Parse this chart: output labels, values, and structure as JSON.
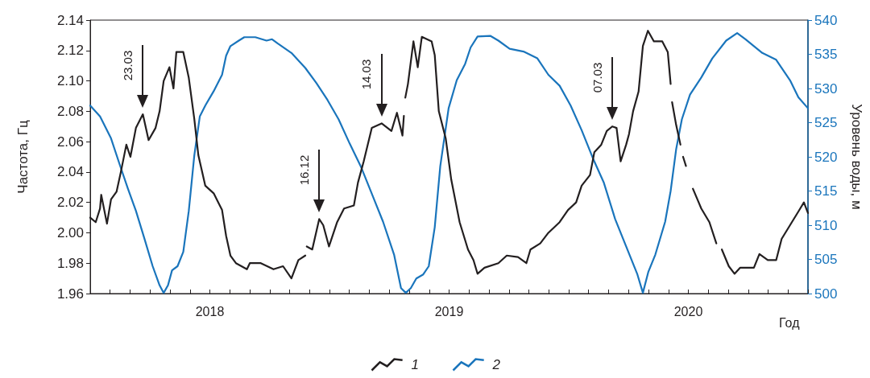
{
  "chart_data": {
    "type": "line",
    "xlabel": "Год",
    "ylabel": "Частота, Гц",
    "y2label": "Уровень воды, м",
    "xlim": [
      2018,
      2021
    ],
    "xticks": [
      {
        "value": 2018,
        "label": null
      },
      {
        "value": 2018.083,
        "label": null
      },
      {
        "value": 2018.167,
        "label": null
      },
      {
        "value": 2018.25,
        "label": null
      },
      {
        "value": 2018.333,
        "label": null
      },
      {
        "value": 2018.417,
        "label": null
      },
      {
        "value": 2018.5,
        "label": "2018"
      },
      {
        "value": 2018.583,
        "label": null
      },
      {
        "value": 2018.667,
        "label": null
      },
      {
        "value": 2018.75,
        "label": null
      },
      {
        "value": 2018.833,
        "label": null
      },
      {
        "value": 2018.917,
        "label": null
      },
      {
        "value": 2019,
        "label": null
      },
      {
        "value": 2019.083,
        "label": null
      },
      {
        "value": 2019.167,
        "label": null
      },
      {
        "value": 2019.25,
        "label": null
      },
      {
        "value": 2019.333,
        "label": null
      },
      {
        "value": 2019.417,
        "label": null
      },
      {
        "value": 2019.5,
        "label": "2019"
      },
      {
        "value": 2019.583,
        "label": null
      },
      {
        "value": 2019.667,
        "label": null
      },
      {
        "value": 2019.75,
        "label": null
      },
      {
        "value": 2019.833,
        "label": null
      },
      {
        "value": 2019.917,
        "label": null
      },
      {
        "value": 2020,
        "label": null
      },
      {
        "value": 2020.083,
        "label": null
      },
      {
        "value": 2020.167,
        "label": null
      },
      {
        "value": 2020.25,
        "label": null
      },
      {
        "value": 2020.333,
        "label": null
      },
      {
        "value": 2020.417,
        "label": null
      },
      {
        "value": 2020.5,
        "label": "2020"
      },
      {
        "value": 2020.583,
        "label": null
      },
      {
        "value": 2020.667,
        "label": null
      },
      {
        "value": 2020.75,
        "label": null
      },
      {
        "value": 2020.833,
        "label": null
      },
      {
        "value": 2020.917,
        "label": null
      },
      {
        "value": 2021,
        "label": null
      }
    ],
    "ylim": [
      1.96,
      2.14
    ],
    "yticks": [
      1.96,
      1.98,
      {
        "value": 2,
        "label": "2.00"
      },
      2.02,
      2.04,
      2.06,
      2.08,
      {
        "value": 2.1,
        "label": "2.10"
      },
      2.12,
      2.14
    ],
    "y2lim": [
      500,
      540
    ],
    "y2ticks": [
      500,
      505,
      510,
      515,
      520,
      525,
      530,
      535,
      540
    ],
    "legend": "bottom",
    "grid": false,
    "marker": "none",
    "line_style": "solid",
    "series": [
      {
        "name": "1",
        "color": "#231f20",
        "x": [
          2018.0,
          2018.023,
          2018.041,
          2018.046,
          2018.07,
          2018.087,
          2018.11,
          2018.128,
          2018.151,
          2018.168,
          2018.191,
          2018.22,
          2018.244,
          2018.273,
          2018.29,
          2018.307,
          2018.331,
          2018.348,
          2018.36,
          2018.389,
          2018.412,
          2018.435,
          2018.452,
          2018.481,
          2018.516,
          2018.551,
          2018.568,
          2018.586,
          2018.609,
          2018.655,
          2018.667,
          2018.713,
          2018.766,
          2018.806,
          2018.841,
          2018.87,
          2018.899,
          2018.902,
          2018.905,
          2018.928,
          2018.957,
          2018.974,
          2018.998,
          2019.032,
          2019.061,
          2019.102,
          2019.119,
          2019.143,
          2019.177,
          2019.218,
          2019.259,
          2019.282,
          2019.305,
          2019.311,
          2019.314,
          2019.317,
          2019.328,
          2019.351,
          2019.369,
          2019.386,
          2019.427,
          2019.44,
          2019.457,
          2019.486,
          2019.509,
          2019.544,
          2019.579,
          2019.602,
          2019.619,
          2019.648,
          2019.706,
          2019.741,
          2019.788,
          2019.823,
          2019.84,
          2019.881,
          2019.915,
          2019.962,
          2019.997,
          2020.031,
          2020.054,
          2020.089,
          2020.107,
          2020.136,
          2020.159,
          2020.182,
          2020.2,
          2020.217,
          2020.24,
          2020.252,
          2020.269,
          2020.292,
          2020.31,
          2020.331,
          2020.356,
          2020.391,
          2020.414,
          2020.426,
          2020.429,
          2020.432,
          2020.449,
          2020.467,
          2020.472,
          2020.478,
          2020.49,
          2020.505,
          2020.519,
          2020.554,
          2020.588,
          2020.617,
          2020.628,
          2020.64,
          2020.669,
          2020.693,
          2020.716,
          2020.774,
          2020.797,
          2020.832,
          2020.867,
          2020.89,
          2020.925,
          2020.96,
          2020.983,
          2021.0
        ],
        "values": [
          2.01,
          2.007,
          2.016,
          2.025,
          2.006,
          2.022,
          2.027,
          2.04,
          2.058,
          2.05,
          2.069,
          2.078,
          2.061,
          2.069,
          2.08,
          2.1,
          2.109,
          2.095,
          2.119,
          2.119,
          2.102,
          2.075,
          2.051,
          2.031,
          2.026,
          2.015,
          1.998,
          1.985,
          1.98,
          1.976,
          1.98,
          1.98,
          1.976,
          1.978,
          1.97,
          1.982,
          1.985,
          null,
          1.991,
          1.989,
          2.009,
          2.005,
          1.991,
          2.007,
          2.016,
          2.018,
          2.033,
          2.047,
          2.069,
          2.072,
          2.067,
          2.079,
          2.064,
          2.077,
          null,
          2.089,
          2.098,
          2.126,
          2.109,
          2.129,
          2.126,
          2.117,
          2.08,
          2.062,
          2.035,
          2.007,
          1.989,
          1.982,
          1.973,
          1.977,
          1.98,
          1.985,
          1.984,
          1.98,
          1.989,
          1.993,
          2.0,
          2.007,
          2.015,
          2.02,
          2.031,
          2.038,
          2.053,
          2.058,
          2.067,
          2.07,
          2.069,
          2.047,
          2.058,
          2.065,
          2.08,
          2.093,
          2.123,
          2.133,
          2.126,
          2.126,
          2.119,
          2.098,
          null,
          2.086,
          2.071,
          2.058,
          null,
          2.05,
          2.044,
          null,
          2.029,
          2.016,
          2.007,
          1.993,
          null,
          1.989,
          1.978,
          1.973,
          1.977,
          1.977,
          1.986,
          1.982,
          1.982,
          1.996,
          2.005,
          2.014,
          2.02,
          2.013
        ]
      },
      {
        "name": "2",
        "color": "#1a75bc",
        "axis": "y2",
        "x": [
          2018.0,
          2018.041,
          2018.087,
          2018.122,
          2018.157,
          2018.191,
          2018.226,
          2018.261,
          2018.29,
          2018.307,
          2018.325,
          2018.342,
          2018.365,
          2018.389,
          2018.412,
          2018.435,
          2018.458,
          2018.481,
          2018.516,
          2018.551,
          2018.568,
          2018.586,
          2018.621,
          2018.644,
          2018.69,
          2018.737,
          2018.76,
          2018.783,
          2018.841,
          2018.899,
          2018.945,
          2018.992,
          2019.038,
          2019.085,
          2019.131,
          2019.177,
          2019.224,
          2019.27,
          2019.299,
          2019.319,
          2019.34,
          2019.363,
          2019.392,
          2019.415,
          2019.44,
          2019.463,
          2019.498,
          2019.532,
          2019.567,
          2019.59,
          2019.619,
          2019.672,
          2019.706,
          2019.753,
          2019.811,
          2019.869,
          2019.915,
          2019.962,
          2020.008,
          2020.054,
          2020.101,
          2020.147,
          2020.194,
          2020.24,
          2020.287,
          2020.31,
          2020.333,
          2020.362,
          2020.403,
          2020.426,
          2020.449,
          2020.473,
          2020.507,
          2020.554,
          2020.6,
          2020.658,
          2020.704,
          2020.739,
          2020.809,
          2020.867,
          2020.925,
          2020.96,
          2021.0
        ],
        "values": [
          527.5,
          525.9,
          522.7,
          519.0,
          515.4,
          512.1,
          508.1,
          504.0,
          501.2,
          500.1,
          501.2,
          503.4,
          504.0,
          506.1,
          512.1,
          520.2,
          525.9,
          527.5,
          529.6,
          532.0,
          534.8,
          536.2,
          537.0,
          537.5,
          537.5,
          537.0,
          537.2,
          536.6,
          535.2,
          533.0,
          530.8,
          528.3,
          525.5,
          521.9,
          518.6,
          514.6,
          510.5,
          505.7,
          500.8,
          500.1,
          500.8,
          502.2,
          502.8,
          504.0,
          509.7,
          518.6,
          527.1,
          531.2,
          533.6,
          536.0,
          537.6,
          537.7,
          537.0,
          535.8,
          535.4,
          534.4,
          532.0,
          530.4,
          527.5,
          523.9,
          519.8,
          516.2,
          510.9,
          506.9,
          502.8,
          500.1,
          503.2,
          505.7,
          510.5,
          515.0,
          521.1,
          525.5,
          529.1,
          531.6,
          534.4,
          537.0,
          538.1,
          537.2,
          535.2,
          534.2,
          531.2,
          528.7,
          527.1
        ]
      }
    ],
    "annotations": [
      {
        "text": "23.03",
        "x": 2018.22,
        "y": 2.078
      },
      {
        "text": "16.12",
        "x": 2018.957,
        "y": 2.009
      },
      {
        "text": "14.03",
        "x": 2019.218,
        "y": 2.072
      },
      {
        "text": "07.03",
        "x": 2020.182,
        "y": 2.07
      }
    ]
  }
}
